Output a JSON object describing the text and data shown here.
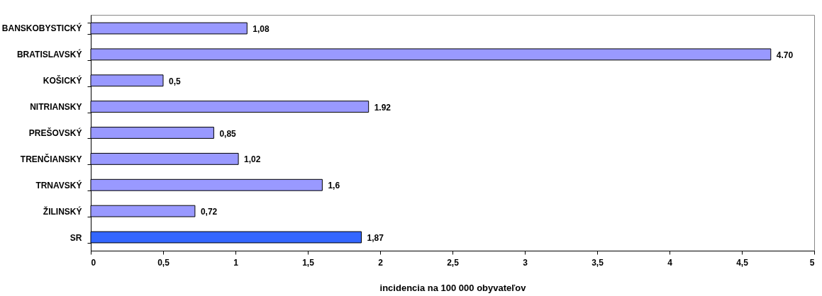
{
  "chart_data": {
    "type": "bar",
    "orientation": "horizontal",
    "xlabel": "incidencia na 100 000 obyvateľov",
    "categories": [
      "BANSKOBYSTICKÝ",
      "BRATISLAVSKÝ",
      "KOŠICKÝ",
      "NITRIANSKY",
      "PREŠOVSKÝ",
      "TRENČIANSKY",
      "TRNAVSKÝ",
      "ŽILINSKÝ",
      "SR"
    ],
    "values": [
      1.08,
      4.7,
      0.5,
      1.92,
      0.85,
      1.02,
      1.6,
      0.72,
      1.87
    ],
    "colors": [
      "#9999ff",
      "#9999ff",
      "#9999ff",
      "#9999ff",
      "#9999ff",
      "#9999ff",
      "#9999ff",
      "#9999ff",
      "#3366ff"
    ],
    "value_labels": [
      "1,08",
      "4.70",
      "0,5",
      "1.92",
      "0,85",
      "1,02",
      "1,6",
      "0,72",
      "1,87"
    ],
    "xlim": [
      0,
      5
    ],
    "xticks": [
      0,
      {
        "value": 0.5,
        "label": "0,5"
      },
      1,
      {
        "value": 1.5,
        "label": "1,5"
      },
      2,
      {
        "value": 2.5,
        "label": "2,5"
      },
      3,
      {
        "value": 3.5,
        "label": "3,5"
      },
      4,
      {
        "value": 4.5,
        "label": "4,5"
      },
      5
    ],
    "grid": false
  }
}
